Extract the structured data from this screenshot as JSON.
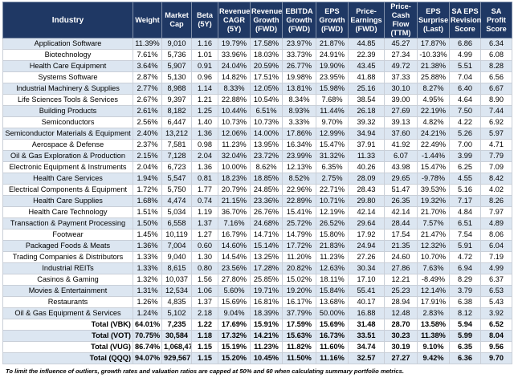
{
  "table": {
    "columns": [
      "Industry",
      "Weight",
      "Market Cap",
      "Beta (5Y)",
      "Revenue CAGR (5Y)",
      "Revenue Growth (FWD)",
      "EBITDA Growth (FWD)",
      "EPS Growth (FWD)",
      "Price-Earnings (FWD)",
      "Price-Cash Flow (TTM)",
      "EPS Surprise (Last)",
      "SA EPS Revision Score",
      "SA Profit Score"
    ],
    "rows": [
      [
        "Application Software",
        "11.39%",
        "9,010",
        "1.16",
        "19.79%",
        "17.58%",
        "23.97%",
        "21.87%",
        "44.85",
        "45.27",
        "17.87%",
        "6.86",
        "6.34"
      ],
      [
        "Biotechnology",
        "7.61%",
        "5,736",
        "1.01",
        "33.96%",
        "18.03%",
        "33.73%",
        "24.91%",
        "22.39",
        "27.34",
        "-10.33%",
        "4.99",
        "6.08"
      ],
      [
        "Health Care Equipment",
        "3.64%",
        "5,907",
        "0.91",
        "24.04%",
        "20.59%",
        "26.77%",
        "19.90%",
        "43.45",
        "49.72",
        "21.38%",
        "5.51",
        "8.28"
      ],
      [
        "Systems Software",
        "2.87%",
        "5,130",
        "0.96",
        "14.82%",
        "17.51%",
        "19.98%",
        "23.95%",
        "41.88",
        "37.33",
        "25.88%",
        "7.04",
        "6.56"
      ],
      [
        "Industrial Machinery & Supplies",
        "2.77%",
        "8,988",
        "1.14",
        "8.33%",
        "12.05%",
        "13.81%",
        "15.98%",
        "25.16",
        "30.10",
        "8.27%",
        "6.40",
        "6.67"
      ],
      [
        "Life Sciences Tools & Services",
        "2.67%",
        "9,397",
        "1.21",
        "22.88%",
        "10.54%",
        "8.34%",
        "7.68%",
        "38.54",
        "39.00",
        "4.95%",
        "4.64",
        "8.90"
      ],
      [
        "Building Products",
        "2.61%",
        "8,182",
        "1.25",
        "10.44%",
        "6.51%",
        "8.93%",
        "11.44%",
        "26.18",
        "27.69",
        "22.19%",
        "7.50",
        "7.44"
      ],
      [
        "Semiconductors",
        "2.56%",
        "6,447",
        "1.40",
        "10.73%",
        "10.73%",
        "3.33%",
        "9.70%",
        "39.32",
        "39.13",
        "4.82%",
        "4.22",
        "6.92"
      ],
      [
        "Semiconductor Materials & Equipment",
        "2.40%",
        "13,212",
        "1.36",
        "12.06%",
        "14.00%",
        "17.86%",
        "12.99%",
        "34.94",
        "37.60",
        "24.21%",
        "5.26",
        "5.97"
      ],
      [
        "Aerospace & Defense",
        "2.37%",
        "7,581",
        "0.98",
        "11.23%",
        "13.95%",
        "16.34%",
        "15.47%",
        "37.91",
        "41.92",
        "22.49%",
        "7.00",
        "4.71"
      ],
      [
        "Oil & Gas Exploration & Production",
        "2.15%",
        "7,128",
        "2.04",
        "32.04%",
        "23.72%",
        "23.99%",
        "31.32%",
        "11.33",
        "6.07",
        "-1.44%",
        "3.99",
        "7.79"
      ],
      [
        "Electronic Equipment & Instruments",
        "2.04%",
        "6,723",
        "1.36",
        "10.00%",
        "8.62%",
        "12.13%",
        "6.35%",
        "40.26",
        "43.98",
        "15.47%",
        "6.25",
        "7.09"
      ],
      [
        "Health Care Services",
        "1.94%",
        "5,547",
        "0.81",
        "18.23%",
        "18.85%",
        "8.52%",
        "2.75%",
        "28.09",
        "29.65",
        "-9.78%",
        "4.55",
        "8.42"
      ],
      [
        "Electrical Components & Equipment",
        "1.72%",
        "5,750",
        "1.77",
        "20.79%",
        "24.85%",
        "22.96%",
        "22.71%",
        "28.43",
        "51.47",
        "39.53%",
        "5.16",
        "4.02"
      ],
      [
        "Health Care Supplies",
        "1.68%",
        "4,474",
        "0.74",
        "21.15%",
        "23.36%",
        "22.89%",
        "10.71%",
        "29.80",
        "26.35",
        "19.32%",
        "7.17",
        "8.26"
      ],
      [
        "Health Care Technology",
        "1.51%",
        "5,034",
        "1.19",
        "36.70%",
        "26.76%",
        "15.41%",
        "12.19%",
        "42.14",
        "42.14",
        "21.70%",
        "4.84",
        "7.97"
      ],
      [
        "Transaction & Payment Processing",
        "1.50%",
        "6,558",
        "1.37",
        "7.16%",
        "24.68%",
        "25.72%",
        "26.52%",
        "29.64",
        "28.44",
        "7.57%",
        "6.51",
        "4.89"
      ],
      [
        "Footwear",
        "1.45%",
        "10,119",
        "1.27",
        "16.79%",
        "14.71%",
        "14.79%",
        "15.80%",
        "17.92",
        "17.54",
        "21.47%",
        "7.54",
        "8.06"
      ],
      [
        "Packaged Foods & Meats",
        "1.36%",
        "7,004",
        "0.60",
        "14.60%",
        "15.14%",
        "17.72%",
        "21.83%",
        "24.94",
        "21.35",
        "12.32%",
        "5.91",
        "6.04"
      ],
      [
        "Trading Companies & Distributors",
        "1.33%",
        "9,040",
        "1.30",
        "14.54%",
        "13.25%",
        "11.20%",
        "11.23%",
        "27.26",
        "24.60",
        "10.70%",
        "4.72",
        "7.19"
      ],
      [
        "Industrial REITs",
        "1.33%",
        "8,615",
        "0.80",
        "23.56%",
        "17.28%",
        "20.82%",
        "12.63%",
        "30.34",
        "27.86",
        "7.63%",
        "6.94",
        "4.99"
      ],
      [
        "Casinos & Gaming",
        "1.32%",
        "10,037",
        "1.56",
        "27.80%",
        "25.85%",
        "15.02%",
        "18.11%",
        "17.10",
        "12.21",
        "-8.49%",
        "8.29",
        "6.37"
      ],
      [
        "Movies & Entertainment",
        "1.31%",
        "12,534",
        "1.06",
        "5.60%",
        "19.71%",
        "19.20%",
        "15.84%",
        "55.41",
        "25.23",
        "12.14%",
        "3.79",
        "6.53"
      ],
      [
        "Restaurants",
        "1.26%",
        "4,835",
        "1.37",
        "15.69%",
        "16.81%",
        "16.17%",
        "13.68%",
        "40.17",
        "28.94",
        "17.91%",
        "6.38",
        "5.43"
      ],
      [
        "Oil & Gas Equipment & Services",
        "1.24%",
        "5,102",
        "2.18",
        "9.04%",
        "18.39%",
        "37.79%",
        "50.00%",
        "16.88",
        "12.48",
        "2.83%",
        "8.12",
        "3.92"
      ]
    ],
    "totals": [
      [
        "Total (VBK)",
        "64.01%",
        "7,235",
        "1.22",
        "17.69%",
        "15.91%",
        "17.59%",
        "15.69%",
        "31.48",
        "28.70",
        "13.58%",
        "5.94",
        "6.52"
      ],
      [
        "Total (VOT)",
        "70.75%",
        "30,584",
        "1.18",
        "17.32%",
        "14.21%",
        "15.63%",
        "16.73%",
        "33.51",
        "30.23",
        "11.38%",
        "5.99",
        "8.04"
      ],
      [
        "Total (VUG)",
        "86.74%",
        "1,068,475",
        "1.15",
        "15.19%",
        "11.23%",
        "11.82%",
        "11.60%",
        "34.74",
        "30.19",
        "9.10%",
        "6.35",
        "9.56"
      ],
      [
        "Total (QQQ)",
        "94.07%",
        "929,567",
        "1.15",
        "15.20%",
        "10.45%",
        "11.50%",
        "11.16%",
        "32.57",
        "27.27",
        "9.42%",
        "6.36",
        "9.70"
      ]
    ]
  },
  "footnote": "To limit the influence of outliers, growth rates and valuation ratios are capped at 50% and 60 when calculating summary portfolio metrics."
}
